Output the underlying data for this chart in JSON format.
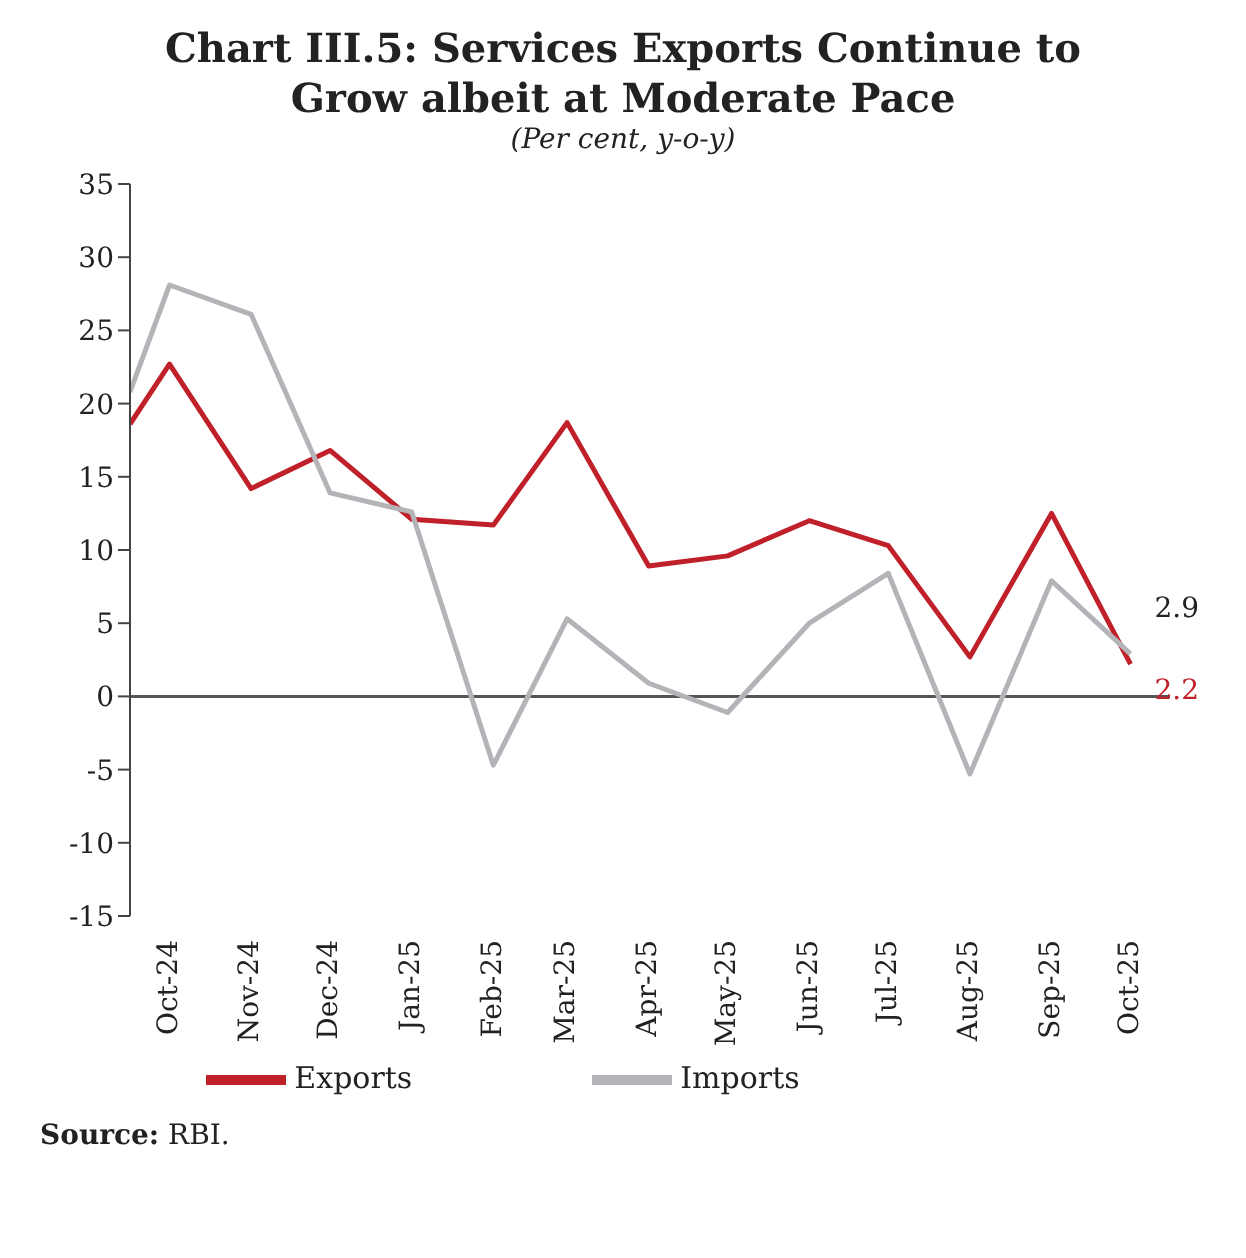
{
  "chart_data": {
    "type": "line",
    "title": "Chart III.5: Services Exports Continue to Grow albeit at Moderate Pace",
    "subtitle": "(Per cent, y-o-y)",
    "x": [
      "2024-09-16",
      "2024-10",
      "2024-11",
      "2024-12",
      "2025-01",
      "2025-02",
      "2025-03",
      "2025-04",
      "2025-05",
      "2025-06",
      "2025-07",
      "2025-08",
      "2025-09",
      "2025-10"
    ],
    "xlim": [
      "2024-09-16",
      "2025-10-16"
    ],
    "xticks": [
      {
        "value": "2024-10",
        "label": "Oct-24"
      },
      {
        "value": "2024-11",
        "label": "Nov-24"
      },
      {
        "value": "2024-12",
        "label": "Dec-24"
      },
      {
        "value": "2025-01",
        "label": "Jan-25"
      },
      {
        "value": "2025-02",
        "label": "Feb-25"
      },
      {
        "value": "2025-03",
        "label": "Mar-25"
      },
      {
        "value": "2025-04",
        "label": "Apr-25"
      },
      {
        "value": "2025-05",
        "label": "May-25"
      },
      {
        "value": "2025-06",
        "label": "Jun-25"
      },
      {
        "value": "2025-07",
        "label": "Jul-25"
      },
      {
        "value": "2025-08",
        "label": "Aug-25"
      },
      {
        "value": "2025-09",
        "label": "Sep-25"
      },
      {
        "value": "2025-10",
        "label": "Oct-25"
      }
    ],
    "ylim": [
      -15,
      35
    ],
    "yticks": [
      -15,
      -10,
      -5,
      0,
      5,
      10,
      15,
      20,
      25,
      30,
      35
    ],
    "series": [
      {
        "name": "Exports",
        "color": "#c0202a",
        "values": [
          18.6,
          22.7,
          14.2,
          16.8,
          12.1,
          11.7,
          18.7,
          8.9,
          9.6,
          12.0,
          10.3,
          2.7,
          12.5,
          2.2
        ],
        "value_labels": [
          null,
          null,
          null,
          null,
          null,
          null,
          null,
          null,
          null,
          null,
          null,
          null,
          null,
          "2.2"
        ]
      },
      {
        "name": "Imports",
        "color": "#b4b4b8",
        "values": [
          20.8,
          28.1,
          26.1,
          13.9,
          12.6,
          -4.7,
          5.3,
          0.9,
          -1.1,
          5.0,
          8.4,
          -5.3,
          7.9,
          2.9
        ],
        "value_labels": [
          null,
          null,
          null,
          null,
          null,
          null,
          null,
          null,
          null,
          null,
          null,
          null,
          null,
          "2.9"
        ]
      }
    ],
    "ref_lines": [
      {
        "axis": "y",
        "value": 0,
        "color": "#555555"
      }
    ],
    "legend": "bottom",
    "grid": false,
    "marker": "none",
    "line_style": "solid",
    "annotations": [
      "Source: RBI."
    ]
  }
}
